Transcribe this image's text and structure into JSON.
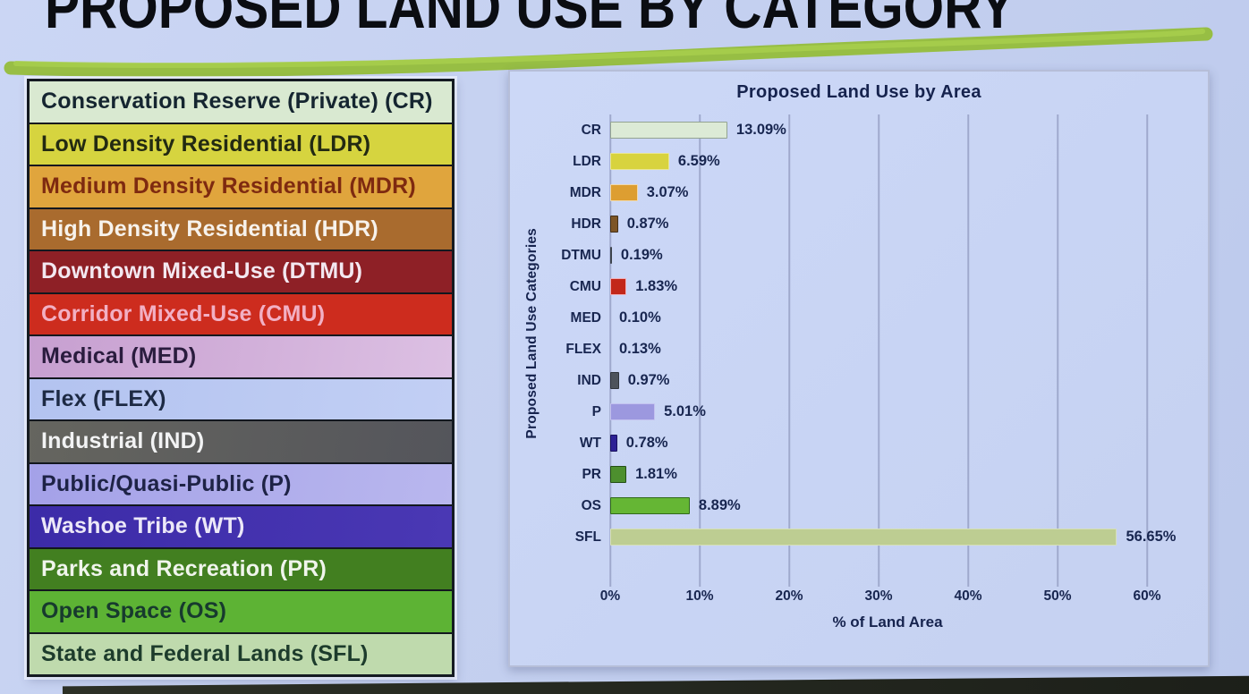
{
  "slide": {
    "title": "PROPOSED LAND USE BY CATEGORY",
    "title_color": "#0b0d12",
    "highlight_color": "#95bd3a",
    "background_color": "#c3cfef"
  },
  "legend": {
    "items": [
      {
        "code": "CR",
        "label": "Conservation Reserve (Private) (CR)",
        "bg": "#d9e9d1",
        "fg": "#152530"
      },
      {
        "code": "LDR",
        "label": "Low Density Residential (LDR)",
        "bg": "#d6d43f",
        "fg": "#232a12"
      },
      {
        "code": "MDR",
        "label": "Medium Density Residential (MDR)",
        "bg": "#e0a53d",
        "fg": "#7e2a10"
      },
      {
        "code": "HDR",
        "label": "High Density Residential (HDR)",
        "bg": "#a96b2e",
        "fg": "#f7f2ec"
      },
      {
        "code": "DTMU",
        "label": "Downtown Mixed-Use (DTMU)",
        "bg": "#8e2026",
        "fg": "#f3e8f0"
      },
      {
        "code": "CMU",
        "label": "Corridor Mixed-Use (CMU)",
        "bg": "#cd2c1e",
        "fg": "#f2b0c4"
      },
      {
        "code": "MED",
        "label": "Medical (MED)",
        "bg": "linear-gradient(100deg,#c79fd0,#dcc0e3)",
        "fg": "#2a1c3e"
      },
      {
        "code": "FLEX",
        "label": "Flex (FLEX)",
        "bg": "linear-gradient(100deg,#b3c3f0,#c2cff4)",
        "fg": "#1d2a44"
      },
      {
        "code": "IND",
        "label": "Industrial (IND)",
        "bg": "linear-gradient(100deg,#65655f,#54555b)",
        "fg": "#f2f3f4"
      },
      {
        "code": "P",
        "label": "Public/Quasi-Public (P)",
        "bg": "linear-gradient(100deg,#a4a1e8,#b9b7ee)",
        "fg": "#1e2346"
      },
      {
        "code": "WT",
        "label": "Washoe Tribe (WT)",
        "bg": "linear-gradient(100deg,#3c2ba8,#4a38b4)",
        "fg": "#ece8f8"
      },
      {
        "code": "PR",
        "label": "Parks and Recreation (PR)",
        "bg": "#427f20",
        "fg": "#f0f5ec"
      },
      {
        "code": "OS",
        "label": "Open Space (OS)",
        "bg": "#5db334",
        "fg": "#173a2e"
      },
      {
        "code": "SFL",
        "label": "State and Federal Lands (SFL)",
        "bg": "#bfdaad",
        "fg": "#1d3c2c"
      }
    ]
  },
  "chart_data": {
    "type": "bar",
    "orientation": "horizontal",
    "title": "Proposed Land Use by Area",
    "xlabel": "% of Land Area",
    "ylabel": "Proposed Land Use Categories",
    "grid": true,
    "legend_position": "none",
    "categories": [
      "CR",
      "LDR",
      "MDR",
      "HDR",
      "DTMU",
      "CMU",
      "MED",
      "FLEX",
      "IND",
      "P",
      "WT",
      "PR",
      "OS",
      "SFL"
    ],
    "values": [
      13.09,
      6.59,
      3.07,
      0.87,
      0.19,
      1.83,
      0.1,
      0.13,
      0.97,
      5.01,
      0.78,
      1.81,
      8.89,
      56.65
    ],
    "value_labels": [
      "13.09%",
      "6.59%",
      "3.07%",
      "0.87%",
      "0.19%",
      "1.83%",
      "0.10%",
      "0.13%",
      "0.97%",
      "5.01%",
      "0.78%",
      "1.81%",
      "8.89%",
      "56.65%"
    ],
    "bar_colors": [
      "#dcead6",
      "#d8d33e",
      "#dd9e31",
      "#7d5526",
      "#3d434c",
      "#c2271a",
      "none",
      "none",
      "#4d535b",
      "#9c98df",
      "#2d2195",
      "#4d8f2e",
      "#65b634",
      "#bdcd92"
    ],
    "bar_borders": [
      "#93a391",
      "#e9e694",
      "#f0d9ae",
      "#43301a",
      "none",
      "#f0b2ba",
      "none",
      "none",
      "#30353c",
      "#c3c1ef",
      "#19125e",
      "#234f15",
      "#30691b",
      "#d6e0b8"
    ],
    "xlim": [
      0,
      60
    ],
    "plot_max_pct": 62,
    "xticks": [
      {
        "value": 0,
        "label": "0%"
      },
      {
        "value": 10,
        "label": "10%"
      },
      {
        "value": 20,
        "label": "20%"
      },
      {
        "value": 30,
        "label": "30%"
      },
      {
        "value": 40,
        "label": "40%"
      },
      {
        "value": 50,
        "label": "50%"
      },
      {
        "value": 60,
        "label": "60%"
      }
    ]
  }
}
